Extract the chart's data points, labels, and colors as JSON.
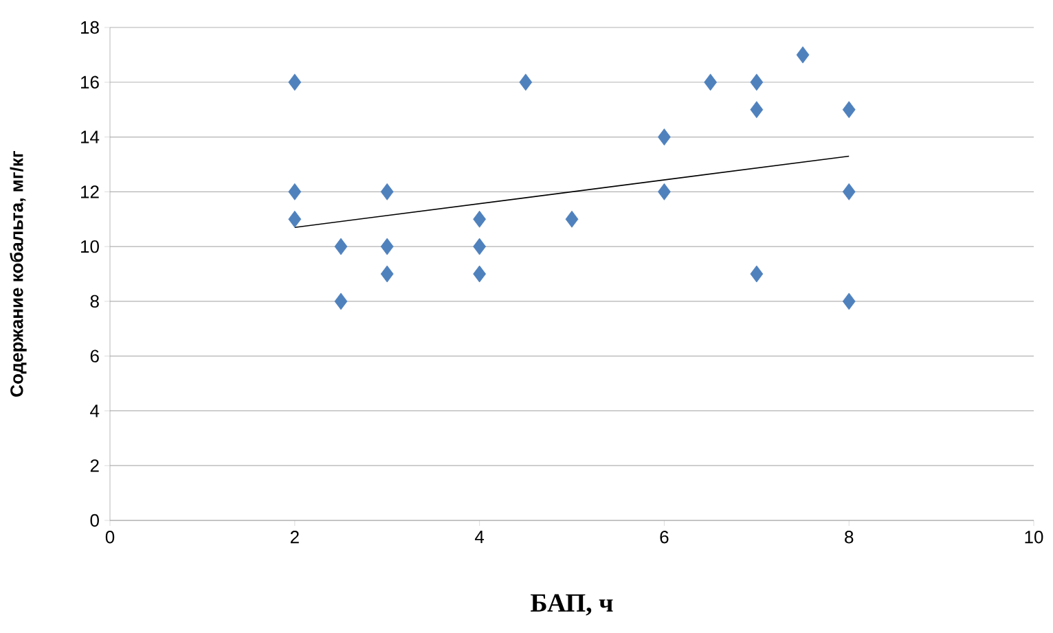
{
  "chart_data": {
    "type": "scatter",
    "xlabel": "БАП, ч",
    "ylabel": "Содержание кобальта, мг/кг",
    "xlim": [
      0,
      10
    ],
    "ylim": [
      0,
      18
    ],
    "xticks": [
      0,
      2,
      4,
      6,
      8,
      10
    ],
    "yticks": [
      0,
      2,
      4,
      6,
      8,
      10,
      12,
      14,
      16,
      18
    ],
    "grid": "y",
    "series": [
      {
        "marker": "diamond",
        "color": "#4f81bd",
        "x": [
          2,
          2,
          2,
          2.5,
          2.5,
          3,
          3,
          3,
          4,
          4,
          4,
          4.5,
          5,
          6,
          6,
          6.5,
          7,
          7,
          7,
          7.5,
          8,
          8,
          8
        ],
        "values": [
          16,
          12,
          11,
          10,
          8,
          12,
          10,
          9,
          11,
          10,
          9,
          16,
          11,
          14,
          12,
          16,
          16,
          15,
          9,
          17,
          15,
          12,
          8
        ]
      },
      {
        "type": "line",
        "marker": "none",
        "color": "#000000",
        "x": [
          2,
          8
        ],
        "values": [
          10.7,
          13.3
        ]
      }
    ]
  }
}
